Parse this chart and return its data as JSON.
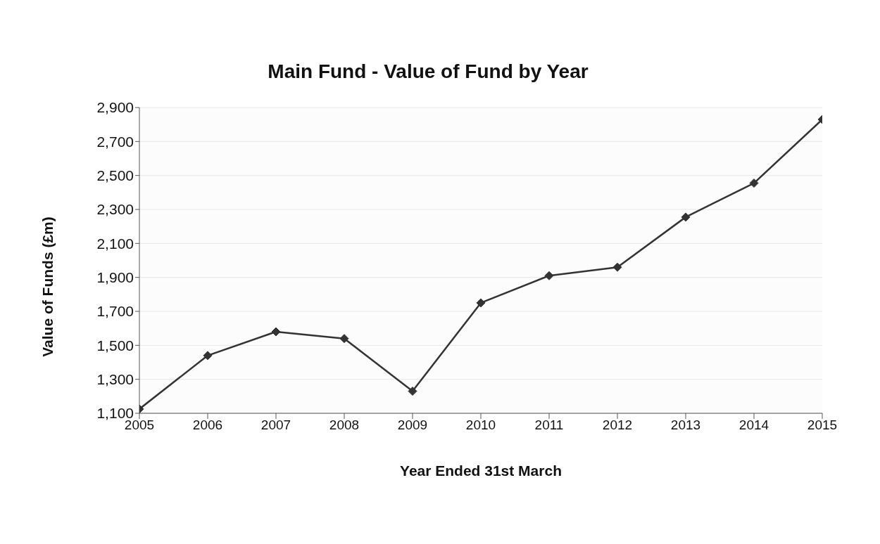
{
  "chart_data": {
    "type": "line",
    "title": "Main Fund - Value of Fund by Year",
    "xlabel": "Year Ended 31st March",
    "ylabel": "Value of Funds (£m)",
    "categories": [
      "2005",
      "2006",
      "2007",
      "2008",
      "2009",
      "2010",
      "2011",
      "2012",
      "2013",
      "2014",
      "2015"
    ],
    "series": [
      {
        "color": "#333333",
        "values": [
          1125,
          1440,
          1580,
          1540,
          1230,
          1750,
          1910,
          1960,
          2255,
          2455,
          2830
        ]
      }
    ],
    "ylim": [
      1100,
      2900
    ],
    "yticks": [
      {
        "value": 1100,
        "label": "1,100"
      },
      {
        "value": 1300,
        "label": "1,300"
      },
      {
        "value": 1500,
        "label": "1,500"
      },
      {
        "value": 1700,
        "label": "1,700"
      },
      {
        "value": 1900,
        "label": "1,900"
      },
      {
        "value": 2100,
        "label": "2,100"
      },
      {
        "value": 2300,
        "label": "2,300"
      },
      {
        "value": 2500,
        "label": "2,500"
      },
      {
        "value": 2700,
        "label": "2,700"
      },
      {
        "value": 2900,
        "label": "2,900"
      }
    ],
    "grid": "y",
    "marker": "diamond",
    "line_style": "solid"
  }
}
